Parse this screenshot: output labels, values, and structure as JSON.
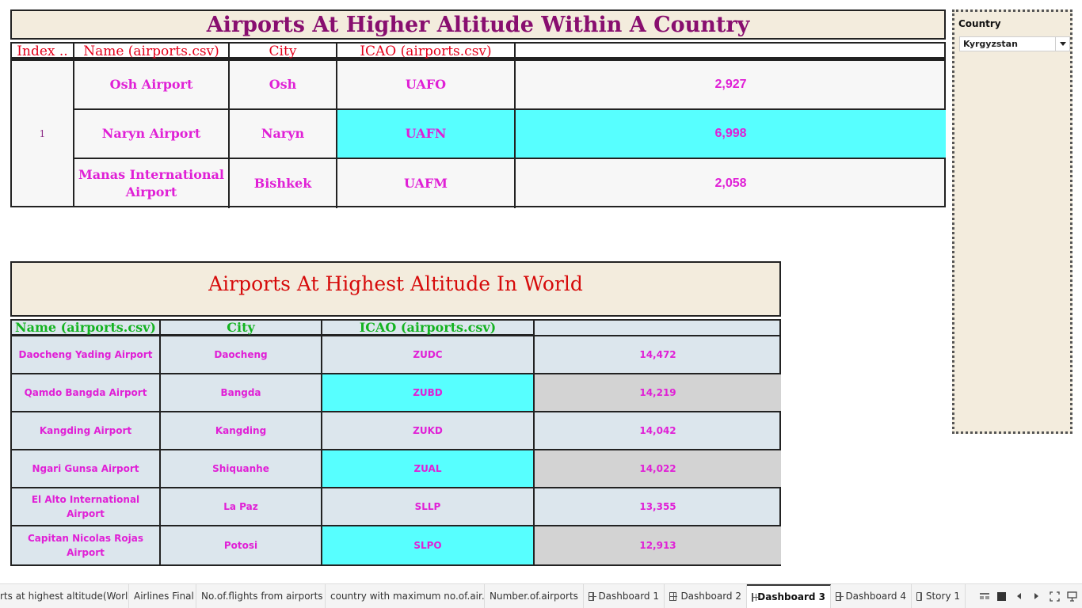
{
  "top_table": {
    "title": "Airports At Higher Altitude Within A Country",
    "headers": [
      "Index ..",
      "Name (airports.csv)",
      "City",
      "ICAO (airports.csv)",
      ""
    ],
    "index_value": "1",
    "rows": [
      {
        "name": "Osh Airport",
        "city": "Osh",
        "icao": "UAFO",
        "altitude": "2,927",
        "highlight": false
      },
      {
        "name": "Naryn Airport",
        "city": "Naryn",
        "icao": "UAFN",
        "altitude": "6,998",
        "highlight": true
      },
      {
        "name": "Manas International Airport",
        "city": "Bishkek",
        "icao": "UAFM",
        "altitude": "2,058",
        "highlight": false
      }
    ]
  },
  "bottom_table": {
    "title": "Airports At Highest Altitude In World",
    "headers": [
      "Name (airports.csv)",
      "City",
      "ICAO (airports.csv)",
      ""
    ],
    "rows": [
      {
        "name": "Daocheng Yading Airport",
        "city": "Daocheng",
        "icao": "ZUDC",
        "altitude": "14,472",
        "highlight": false
      },
      {
        "name": "Qamdo Bangda Airport",
        "city": "Bangda",
        "icao": "ZUBD",
        "altitude": "14,219",
        "highlight": true
      },
      {
        "name": "Kangding Airport",
        "city": "Kangding",
        "icao": "ZUKD",
        "altitude": "14,042",
        "highlight": false
      },
      {
        "name": "Ngari Gunsa Airport",
        "city": "Shiquanhe",
        "icao": "ZUAL",
        "altitude": "14,022",
        "highlight": true
      },
      {
        "name": "El Alto International Airport",
        "city": "La Paz",
        "icao": "SLLP",
        "altitude": "13,355",
        "highlight": false
      },
      {
        "name": "Capitan Nicolas Rojas Airport",
        "city": "Potosi",
        "icao": "SLPO",
        "altitude": "12,913",
        "highlight": true
      }
    ]
  },
  "filter": {
    "label": "Country",
    "selected": "Kyrgyzstan"
  },
  "tabs": [
    {
      "label": "rts at highest altitude(Worl...",
      "icon": "none",
      "active": false
    },
    {
      "label": "Airlines Final",
      "icon": "none",
      "active": false
    },
    {
      "label": "No.of.flights from airports",
      "icon": "none",
      "active": false
    },
    {
      "label": "country with maximum no.of.air...",
      "icon": "none",
      "active": false
    },
    {
      "label": "Number.of.airports",
      "icon": "none",
      "active": false
    },
    {
      "label": "Dashboard 1",
      "icon": "dashboard-icon",
      "active": false
    },
    {
      "label": "Dashboard 2",
      "icon": "dashboard-icon",
      "active": false
    },
    {
      "label": "Dashboard 3",
      "icon": "dashboard-icon",
      "active": true
    },
    {
      "label": "Dashboard 4",
      "icon": "dashboard-icon",
      "active": false
    },
    {
      "label": "Story 1",
      "icon": "story-icon",
      "active": false
    }
  ],
  "colors": {
    "title_bg": "#f3ecdd",
    "top_title": "#880e6f",
    "top_header": "#e4001b",
    "bottom_title": "#d60a0a",
    "bottom_header": "#14b321",
    "cell_text": "#e020d6",
    "highlight_cyan": "#57ffff",
    "highlight_grey": "#d3d3d3"
  }
}
